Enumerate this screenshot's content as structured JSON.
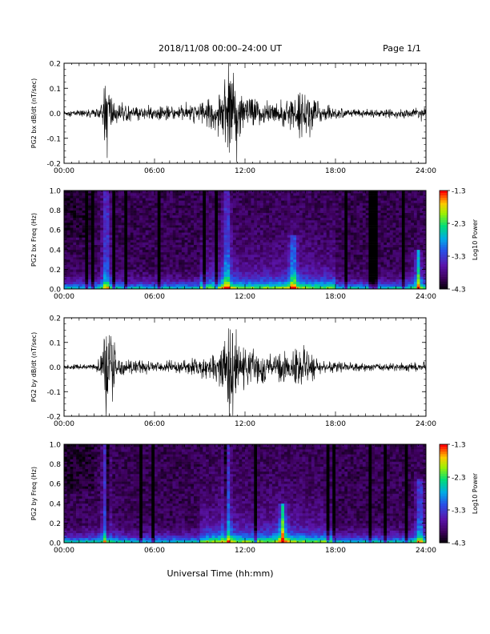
{
  "header": {
    "title": "2018/11/08  00:00–24:00 UT",
    "page": "Page 1/1"
  },
  "xlabel": "Universal Time (hh:mm)",
  "chart_data": [
    {
      "type": "line",
      "ylabel": "PG2 bx dB/dt (nT/sec)",
      "xlim_hours": [
        0,
        24
      ],
      "ylim": [
        -0.2,
        0.2
      ],
      "xticks": [
        "00:00",
        "06:00",
        "12:00",
        "18:00",
        "24:00"
      ],
      "yticks": [
        "-0.2",
        "-0.1",
        "0.0",
        "0.1",
        "0.2"
      ],
      "envelope": {
        "x_hours": [
          0,
          2,
          2.4,
          2.6,
          2.7,
          2.8,
          2.9,
          3.0,
          3.2,
          3.5,
          4,
          5,
          6,
          8,
          9,
          10,
          10.5,
          10.8,
          11,
          11.2,
          11.5,
          12,
          13,
          14,
          15,
          15.5,
          16,
          16.3,
          16.5,
          17,
          18,
          20,
          22,
          24
        ],
        "amplitude": [
          0.012,
          0.014,
          0.03,
          0.06,
          0.12,
          0.18,
          0.2,
          0.13,
          0.07,
          0.04,
          0.03,
          0.025,
          0.022,
          0.03,
          0.04,
          0.06,
          0.09,
          0.16,
          0.2,
          0.15,
          0.1,
          0.07,
          0.05,
          0.04,
          0.05,
          0.07,
          0.09,
          0.1,
          0.06,
          0.04,
          0.02,
          0.015,
          0.015,
          0.02
        ]
      }
    },
    {
      "type": "heatmap",
      "ylabel": "PG2 bx Freq (Hz)",
      "colorbar_label": "Log10 Power",
      "colorbar_ticks": [
        "-1.3",
        "-2.3",
        "-3.3",
        "-4.3"
      ],
      "clim": [
        -4.3,
        -1.3
      ],
      "xlim_hours": [
        0,
        24
      ],
      "ylim": [
        0,
        1.0
      ],
      "xticks": [
        "00:00",
        "06:00",
        "12:00",
        "18:00",
        "24:00"
      ],
      "yticks": [
        "0.0",
        "0.2",
        "0.4",
        "0.6",
        "0.8",
        "1.0"
      ],
      "hotspots_hours": [
        [
          2.8,
          1.0
        ],
        [
          10.8,
          1.0
        ],
        [
          15.2,
          0.55
        ],
        [
          23.5,
          0.4
        ]
      ]
    },
    {
      "type": "line",
      "ylabel": "PG2 by dB/dt (nT/sec)",
      "xlim_hours": [
        0,
        24
      ],
      "ylim": [
        -0.2,
        0.2
      ],
      "xticks": [
        "00:00",
        "06:00",
        "12:00",
        "18:00",
        "24:00"
      ],
      "yticks": [
        "-0.2",
        "-0.1",
        "0.0",
        "0.1",
        "0.2"
      ],
      "envelope": {
        "x_hours": [
          0,
          2,
          2.4,
          2.6,
          2.8,
          2.9,
          3.0,
          3.2,
          3.5,
          4,
          5,
          6,
          8,
          9,
          10,
          10.5,
          10.8,
          11,
          11.3,
          11.6,
          12,
          13,
          14,
          15,
          15.5,
          16,
          16.5,
          17,
          18,
          20,
          22,
          24
        ],
        "amplitude": [
          0.008,
          0.012,
          0.04,
          0.09,
          0.16,
          0.2,
          0.2,
          0.12,
          0.05,
          0.03,
          0.025,
          0.02,
          0.03,
          0.035,
          0.05,
          0.08,
          0.14,
          0.2,
          0.15,
          0.1,
          0.07,
          0.06,
          0.05,
          0.055,
          0.07,
          0.06,
          0.045,
          0.03,
          0.02,
          0.015,
          0.015,
          0.018
        ]
      }
    },
    {
      "type": "heatmap",
      "ylabel": "PG2 by Freq (Hz)",
      "colorbar_label": "Log10 Power",
      "colorbar_ticks": [
        "-1.3",
        "-2.3",
        "-3.3",
        "-4.3"
      ],
      "clim": [
        -4.3,
        -1.3
      ],
      "xlim_hours": [
        0,
        24
      ],
      "ylim": [
        0,
        1.0
      ],
      "xticks": [
        "00:00",
        "06:00",
        "12:00",
        "18:00",
        "24:00"
      ],
      "yticks": [
        "0.0",
        "0.2",
        "0.4",
        "0.6",
        "0.8",
        "1.0"
      ],
      "hotspots_hours": [
        [
          2.8,
          1.0
        ],
        [
          10.8,
          1.0
        ],
        [
          14.5,
          0.4
        ],
        [
          23.6,
          0.65
        ]
      ]
    }
  ]
}
